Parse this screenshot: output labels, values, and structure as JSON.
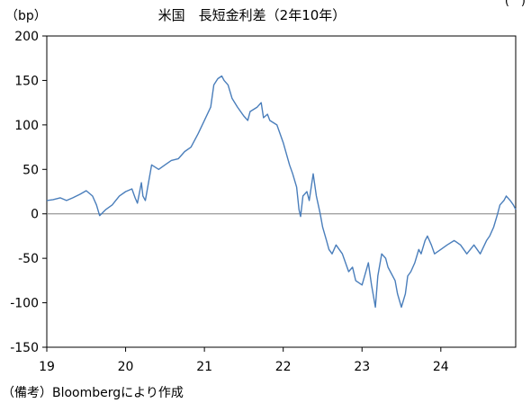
{
  "corner_mark": "(　)",
  "source_note": "（備考）Bloombergにより作成",
  "chart_data": {
    "type": "line",
    "title": "米国　長短金利差（2年10年）",
    "ylabel": "（bp）",
    "xlabel": "",
    "ylim": [
      -150,
      200
    ],
    "yticks": [
      200,
      150,
      100,
      50,
      0,
      -50,
      -100,
      -150
    ],
    "xlim": [
      2019.0,
      2024.95
    ],
    "xticks": [
      {
        "label": "19",
        "value": 2019.0
      },
      {
        "label": "20",
        "value": 2020.0
      },
      {
        "label": "21",
        "value": 2021.0
      },
      {
        "label": "22",
        "value": 2022.0
      },
      {
        "label": "23",
        "value": 2023.0
      },
      {
        "label": "24",
        "value": 2024.0
      }
    ],
    "zero_line": true,
    "grid": false,
    "series": [
      {
        "color": "#4a7ebb",
        "x": [
          2019.0,
          2019.08,
          2019.17,
          2019.25,
          2019.33,
          2019.42,
          2019.5,
          2019.58,
          2019.63,
          2019.67,
          2019.75,
          2019.83,
          2019.92,
          2020.0,
          2020.08,
          2020.12,
          2020.15,
          2020.2,
          2020.22,
          2020.25,
          2020.33,
          2020.42,
          2020.5,
          2020.58,
          2020.67,
          2020.75,
          2020.83,
          2020.92,
          2021.0,
          2021.08,
          2021.12,
          2021.17,
          2021.22,
          2021.25,
          2021.3,
          2021.35,
          2021.42,
          2021.5,
          2021.55,
          2021.58,
          2021.67,
          2021.72,
          2021.75,
          2021.8,
          2021.83,
          2021.92,
          2022.0,
          2022.08,
          2022.12,
          2022.17,
          2022.2,
          2022.22,
          2022.25,
          2022.3,
          2022.33,
          2022.38,
          2022.42,
          2022.47,
          2022.5,
          2022.55,
          2022.58,
          2022.62,
          2022.67,
          2022.75,
          2022.83,
          2022.88,
          2022.92,
          2023.0,
          2023.08,
          2023.12,
          2023.17,
          2023.2,
          2023.25,
          2023.3,
          2023.33,
          2023.42,
          2023.45,
          2023.5,
          2023.55,
          2023.58,
          2023.62,
          2023.67,
          2023.72,
          2023.75,
          2023.8,
          2023.83,
          2023.88,
          2023.92,
          2024.0,
          2024.08,
          2024.17,
          2024.25,
          2024.33,
          2024.42,
          2024.5,
          2024.58,
          2024.62,
          2024.67,
          2024.72,
          2024.75,
          2024.8,
          2024.83,
          2024.88,
          2024.92,
          2024.95
        ],
        "y": [
          15,
          16,
          18,
          15,
          18,
          22,
          26,
          20,
          10,
          -2,
          5,
          10,
          20,
          25,
          28,
          18,
          12,
          35,
          20,
          15,
          55,
          50,
          55,
          60,
          62,
          70,
          75,
          90,
          105,
          120,
          145,
          152,
          155,
          150,
          145,
          130,
          120,
          110,
          105,
          115,
          120,
          125,
          108,
          112,
          105,
          100,
          80,
          55,
          45,
          30,
          5,
          -3,
          20,
          25,
          15,
          45,
          20,
          0,
          -15,
          -30,
          -40,
          -45,
          -35,
          -45,
          -65,
          -60,
          -75,
          -80,
          -55,
          -80,
          -105,
          -70,
          -45,
          -50,
          -60,
          -75,
          -90,
          -105,
          -90,
          -70,
          -65,
          -55,
          -40,
          -45,
          -30,
          -25,
          -35,
          -45,
          -40,
          -35,
          -30,
          -35,
          -45,
          -35,
          -45,
          -30,
          -25,
          -15,
          0,
          10,
          15,
          20,
          15,
          10,
          5
        ]
      }
    ]
  }
}
